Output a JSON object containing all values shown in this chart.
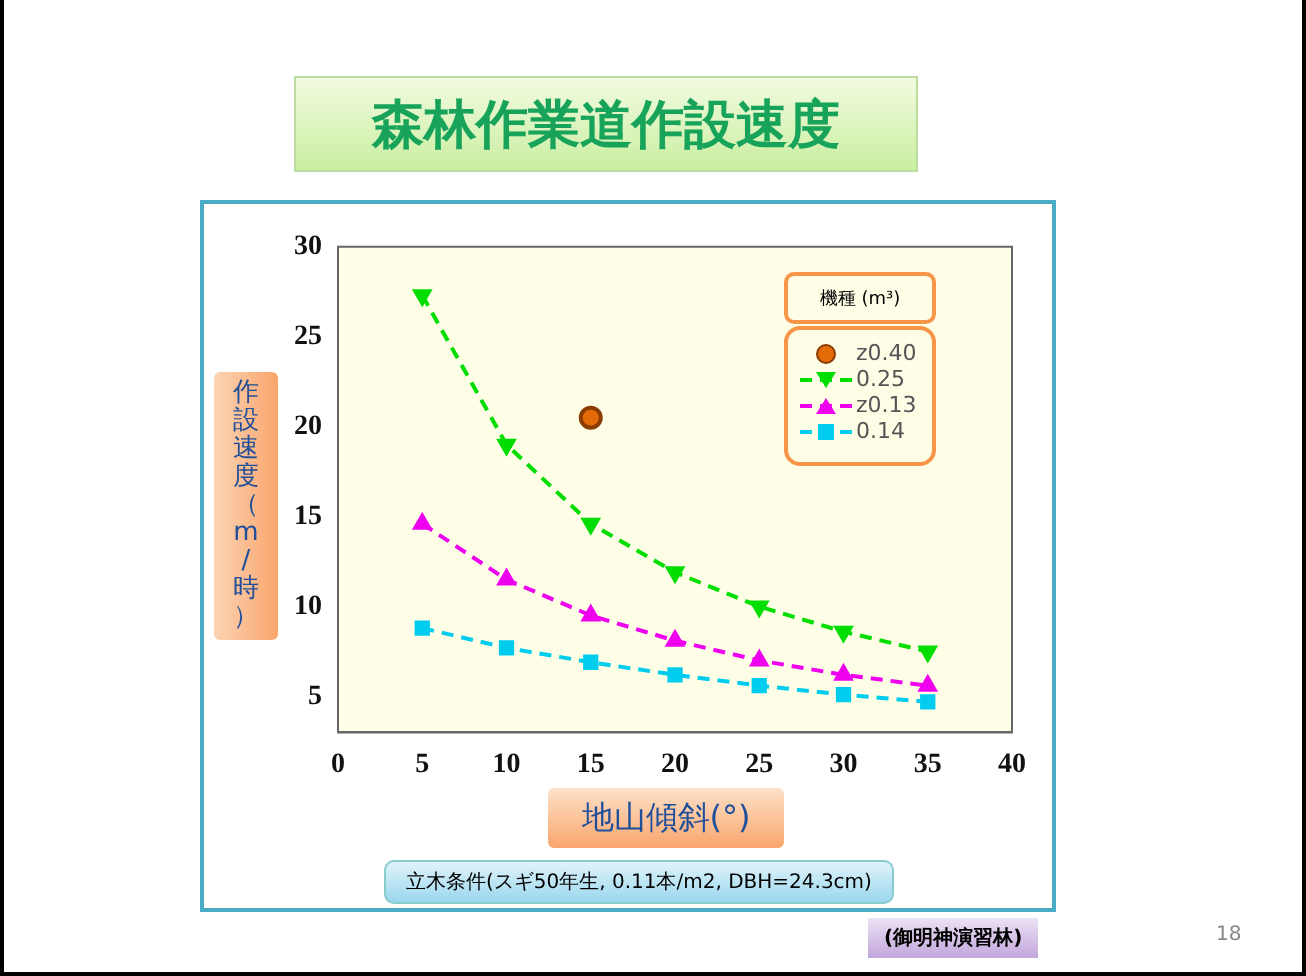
{
  "chart_data": {
    "type": "line",
    "title": "森林作業道作設速度",
    "xlabel": "地山傾斜(°)",
    "ylabel": "作設速度（m/時）",
    "legend_title": "機種 (m³)",
    "x": [
      5,
      10,
      15,
      20,
      25,
      30,
      35
    ],
    "series": [
      {
        "name": "z0.40",
        "type": "scatter",
        "color": "#e36c09",
        "marker": "circle",
        "x": [
          15
        ],
        "values": [
          20.5
        ]
      },
      {
        "name": "0.25",
        "color": "#00dd00",
        "marker": "triangle-down",
        "line_style": "dashed",
        "values": [
          27.3,
          19,
          14.6,
          11.9,
          10,
          8.6,
          7.5
        ]
      },
      {
        "name": "z0.13",
        "color": "#ee00ee",
        "marker": "triangle",
        "line_style": "dashed",
        "values": [
          14.6,
          11.5,
          9.5,
          8.1,
          7,
          6.2,
          5.6
        ]
      },
      {
        "name": "0.14",
        "color": "#00ccee",
        "marker": "square",
        "line_style": "dashed",
        "values": [
          8.8,
          7.7,
          6.9,
          6.2,
          5.6,
          5.1,
          4.7
        ]
      }
    ],
    "xlim": [
      0,
      40
    ],
    "xticks": [
      0,
      5,
      10,
      15,
      20,
      25,
      30,
      35,
      40
    ],
    "ylim": [
      3,
      30
    ],
    "yticks": [
      5,
      10,
      15,
      20,
      25,
      30
    ],
    "grid": false,
    "legend": "top right",
    "annotations": [
      "立木条件(スギ50年生, 0.11本/m2, DBH=24.3cm)",
      "(御明神演習林)",
      "18"
    ]
  }
}
